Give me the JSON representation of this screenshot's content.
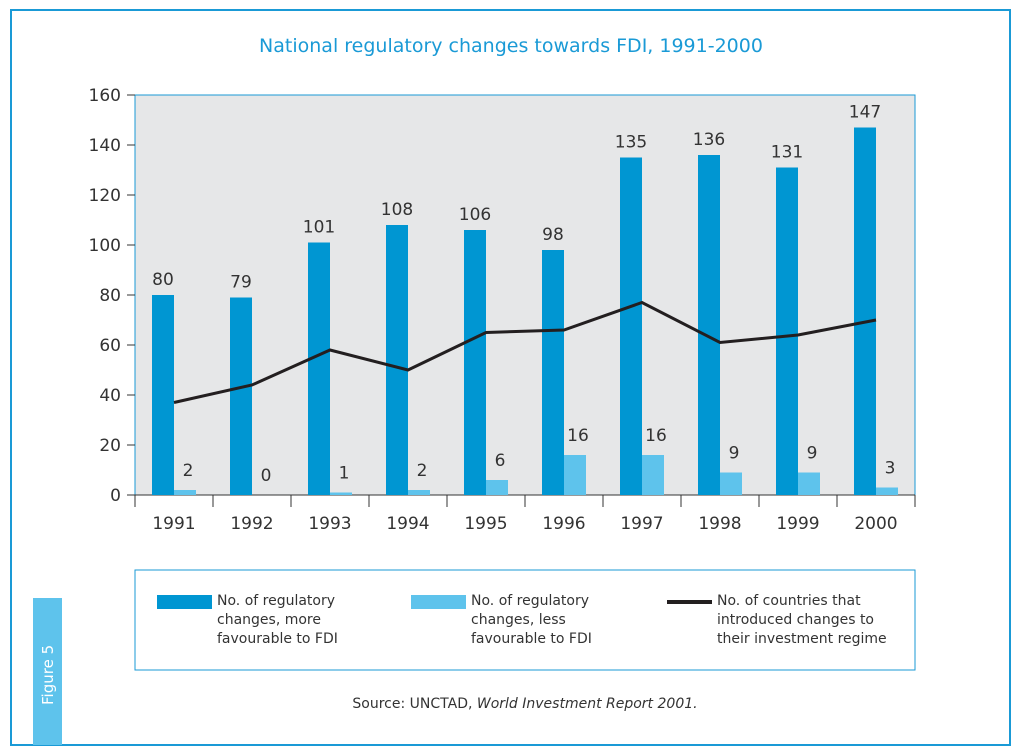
{
  "chart_data": {
    "type": "bar_line",
    "title": "National regulatory changes towards FDI, 1991-2000",
    "categories": [
      "1991",
      "1992",
      "1993",
      "1994",
      "1995",
      "1996",
      "1997",
      "1998",
      "1999",
      "2000"
    ],
    "series": [
      {
        "name": "No. of regulatory changes, more favourable to FDI",
        "type": "bar",
        "color": "#0096d2",
        "values": [
          80,
          79,
          101,
          108,
          106,
          98,
          135,
          136,
          131,
          147
        ]
      },
      {
        "name": "No. of regulatory changes, less favourable to FDI",
        "type": "bar",
        "color": "#5ec3ec",
        "values": [
          2,
          0,
          1,
          2,
          6,
          16,
          16,
          9,
          9,
          3
        ]
      },
      {
        "name": "No. of countries that introduced changes to their investment regime",
        "type": "line",
        "color": "#231f20",
        "values": [
          37,
          44,
          58,
          50,
          65,
          66,
          77,
          61,
          64,
          70
        ]
      }
    ],
    "ylim": [
      0,
      160
    ],
    "yticks": [
      0,
      20,
      40,
      60,
      80,
      100,
      120,
      140,
      160
    ],
    "grid": false,
    "source": {
      "prefix": "Source: UNCTAD, ",
      "title": "World Investment Report 2001."
    },
    "figure_label": "Figure 5"
  }
}
